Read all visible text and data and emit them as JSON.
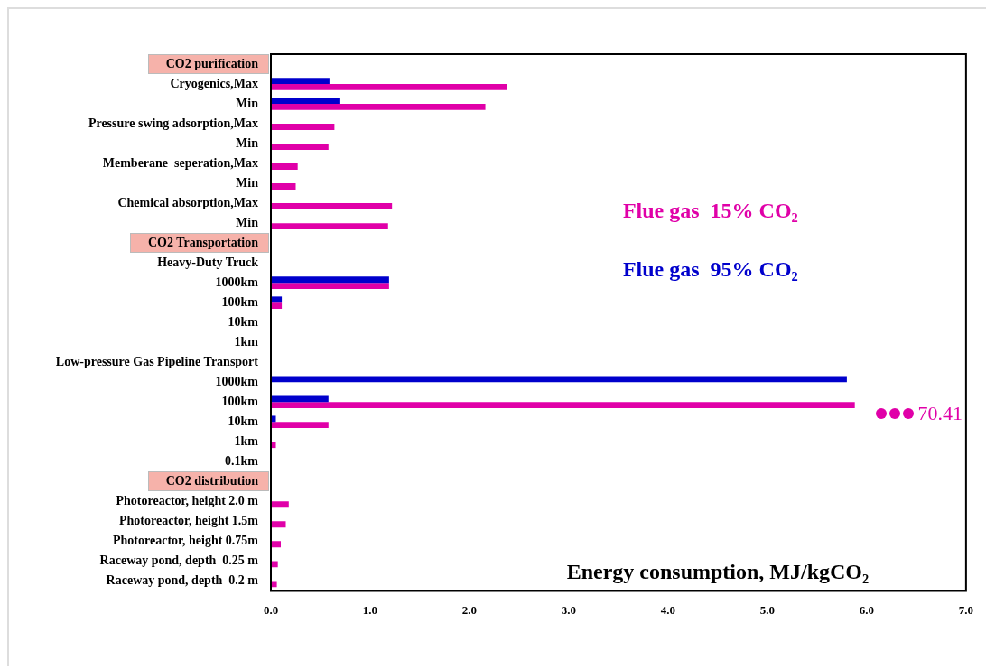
{
  "chart_data": {
    "type": "bar",
    "orientation": "horizontal",
    "xlabel": "Energy consumption, MJ/kgCO₂",
    "categories": [
      "CO2 purification",
      "Cryogenics,Max",
      "Min",
      "Pressure swing adsorption,Max",
      "Min",
      "Memberane  seperation,Max",
      "Min",
      "Chemical absorption,Max",
      "Min",
      "CO2 Transportation",
      "Heavy-Duty Truck",
      "1000km",
      "100km",
      "10km",
      "1km",
      "Low-pressure Gas Pipeline Transport",
      "1000km",
      "100km",
      "10km",
      "1km",
      "0.1km",
      "CO2 distribution",
      "Photoreactor, height 2.0 m",
      "Photoreactor, height 1.5m",
      "Photoreactor, height 0.75m",
      "Raceway pond, depth  0.25 m",
      "Raceway pond, depth  0.2 m"
    ],
    "series": [
      {
        "name": "Flue gas  95% CO₂",
        "color": "#0000cc",
        "values": [
          null,
          0.59,
          0.69,
          null,
          null,
          null,
          null,
          null,
          null,
          null,
          null,
          1.19,
          0.11,
          null,
          null,
          null,
          5.8,
          0.58,
          0.05,
          null,
          null,
          null,
          null,
          null,
          null,
          null,
          null
        ]
      },
      {
        "name": "Flue gas  15% CO₂",
        "color": "#e000a8",
        "values": [
          null,
          2.38,
          2.16,
          0.64,
          0.58,
          0.27,
          0.25,
          1.22,
          1.18,
          null,
          null,
          1.19,
          0.11,
          null,
          null,
          null,
          null,
          5.88,
          0.58,
          0.05,
          null,
          null,
          0.18,
          0.15,
          0.1,
          0.07,
          0.06
        ]
      }
    ],
    "annotations": [
      "70.41"
    ],
    "xlim": [
      0,
      7
    ],
    "xticks": [
      {
        "value": 0,
        "label": "0.0"
      },
      {
        "value": 1,
        "label": "1.0"
      },
      {
        "value": 2,
        "label": "2.0"
      },
      {
        "value": 3,
        "label": "3.0"
      },
      {
        "value": 4,
        "label": "4.0"
      },
      {
        "value": 5,
        "label": "5.0"
      },
      {
        "value": 6,
        "label": "6.0"
      },
      {
        "value": 7,
        "label": "7.0"
      }
    ],
    "grid": false,
    "legend": "right"
  }
}
